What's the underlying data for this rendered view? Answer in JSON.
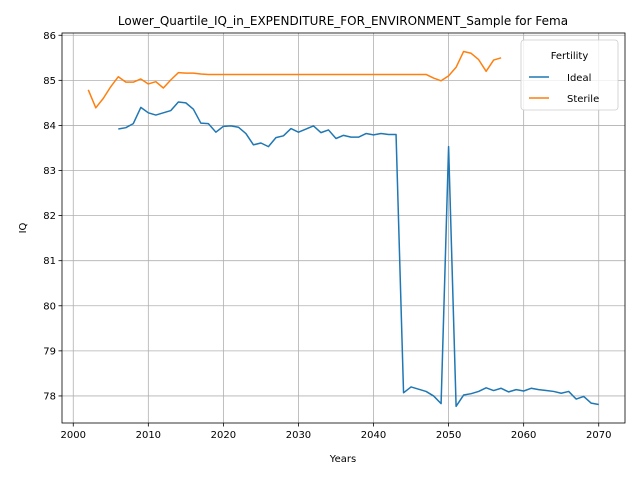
{
  "chart_data": {
    "type": "line",
    "title": "Lower_Quartile_IQ_in_EXPENDITURE_FOR_ENVIRONMENT_Sample for Fema",
    "xlabel": "Years",
    "ylabel": "IQ",
    "xlim": [
      1998.5,
      2073.5
    ],
    "ylim": [
      77.4,
      86.05
    ],
    "xticks": [
      2000,
      2010,
      2020,
      2030,
      2040,
      2050,
      2060,
      2070
    ],
    "yticks": [
      78,
      79,
      80,
      81,
      82,
      83,
      84,
      85,
      86
    ],
    "grid": true,
    "legend": {
      "title": "Fertility",
      "location": "top-right"
    },
    "series": [
      {
        "name": "Ideal",
        "color": "#1f77b4",
        "x": [
          2006,
          2007,
          2008,
          2009,
          2010,
          2011,
          2012,
          2013,
          2014,
          2015,
          2016,
          2017,
          2018,
          2019,
          2020,
          2021,
          2022,
          2023,
          2024,
          2025,
          2026,
          2027,
          2028,
          2029,
          2030,
          2031,
          2032,
          2033,
          2034,
          2035,
          2036,
          2037,
          2038,
          2039,
          2040,
          2041,
          2042,
          2043,
          2044,
          2045,
          2046,
          2047,
          2048,
          2049,
          2050,
          2051,
          2052,
          2053,
          2054,
          2055,
          2056,
          2057,
          2058,
          2059,
          2060,
          2061,
          2062,
          2063,
          2064,
          2065,
          2066,
          2067,
          2068,
          2069,
          2070
        ],
        "y": [
          83.92,
          83.95,
          84.04,
          84.4,
          84.28,
          84.23,
          84.28,
          84.33,
          84.52,
          84.5,
          84.36,
          84.05,
          84.04,
          83.85,
          83.98,
          83.99,
          83.96,
          83.82,
          83.57,
          83.61,
          83.53,
          83.73,
          83.77,
          83.93,
          83.85,
          83.92,
          83.99,
          83.84,
          83.9,
          83.71,
          83.78,
          83.74,
          83.74,
          83.82,
          83.79,
          83.82,
          83.8,
          83.8,
          78.07,
          78.2,
          78.15,
          78.1,
          78.0,
          77.83,
          83.53,
          77.77,
          78.02,
          78.05,
          78.1,
          78.18,
          78.12,
          78.17,
          78.09,
          78.14,
          78.11,
          78.17,
          78.14,
          78.12,
          78.1,
          78.06,
          78.1,
          77.93,
          77.99,
          77.84,
          77.81
        ]
      },
      {
        "name": "Sterile",
        "color": "#ff7f0e",
        "x": [
          2002,
          2003,
          2004,
          2005,
          2006,
          2007,
          2008,
          2009,
          2010,
          2011,
          2012,
          2013,
          2014,
          2015,
          2016,
          2017,
          2018,
          2019,
          2020,
          2021,
          2022,
          2023,
          2024,
          2025,
          2026,
          2027,
          2028,
          2029,
          2030,
          2031,
          2032,
          2033,
          2034,
          2035,
          2036,
          2037,
          2038,
          2039,
          2040,
          2041,
          2042,
          2043,
          2044,
          2045,
          2046,
          2047,
          2048,
          2049,
          2050,
          2051,
          2052,
          2053,
          2054,
          2055,
          2056,
          2057
        ],
        "y": [
          84.79,
          84.39,
          84.6,
          84.86,
          85.08,
          84.96,
          84.96,
          85.03,
          84.92,
          84.97,
          84.83,
          85.01,
          85.17,
          85.16,
          85.16,
          85.14,
          85.13,
          85.13,
          85.13,
          85.13,
          85.13,
          85.13,
          85.13,
          85.13,
          85.13,
          85.13,
          85.13,
          85.13,
          85.13,
          85.13,
          85.13,
          85.13,
          85.13,
          85.13,
          85.13,
          85.13,
          85.13,
          85.13,
          85.13,
          85.13,
          85.13,
          85.13,
          85.13,
          85.13,
          85.13,
          85.13,
          85.05,
          84.99,
          85.1,
          85.29,
          85.64,
          85.6,
          85.46,
          85.2,
          85.45,
          85.5
        ]
      }
    ]
  }
}
